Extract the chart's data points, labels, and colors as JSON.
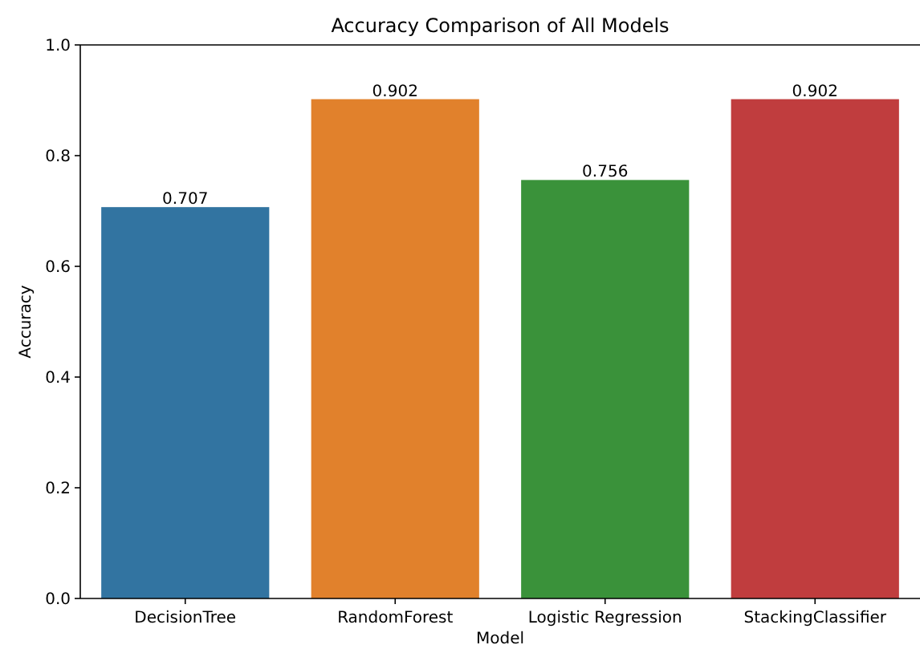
{
  "chart_data": {
    "type": "bar",
    "title": "Accuracy Comparison of All Models",
    "xlabel": "Model",
    "ylabel": "Accuracy",
    "categories": [
      "DecisionTree",
      "RandomForest",
      "Logistic Regression",
      "StackingClassifier"
    ],
    "values": [
      0.707,
      0.902,
      0.756,
      0.902
    ],
    "colors": [
      "#3274a1",
      "#e1812c",
      "#3a923a",
      "#c03d3e"
    ],
    "ylim": [
      0,
      1
    ],
    "yticks": [
      {
        "value": 0,
        "label": "0.0"
      },
      {
        "value": 0.2,
        "label": "0.2"
      },
      {
        "value": 0.4,
        "label": "0.4"
      },
      {
        "value": 0.6,
        "label": "0.6"
      },
      {
        "value": 0.8,
        "label": "0.8"
      },
      {
        "value": 1,
        "label": "1.0"
      }
    ],
    "data_labels": true,
    "grid": false
  }
}
